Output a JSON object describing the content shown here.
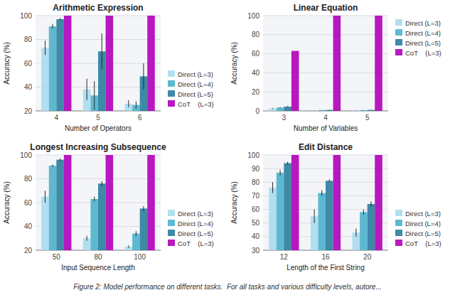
{
  "chart_data": [
    {
      "type": "bar",
      "title": "Arithmetic Expression",
      "x_label": "Number of Operators",
      "y_label": "Accuracy (%)",
      "categories": [
        "4",
        "5",
        "6"
      ],
      "series": [
        {
          "name": "Direct (L=3)",
          "color": "#aadcee",
          "values": [
            73,
            38,
            26
          ],
          "errors": [
            6,
            9,
            3
          ]
        },
        {
          "name": "Direct (L=4)",
          "color": "#4db3cc",
          "values": [
            91,
            33,
            25
          ],
          "errors": [
            2,
            12,
            3
          ]
        },
        {
          "name": "Direct (L=5)",
          "color": "#2a7d9c",
          "values": [
            97,
            70,
            49
          ],
          "errors": [
            1,
            15,
            11
          ]
        },
        {
          "name": "CoT    (L=3)",
          "color": "#b000b8",
          "values": [
            100,
            100,
            100
          ],
          "errors": [
            0,
            0,
            0
          ]
        }
      ],
      "ylim": [
        20,
        100
      ],
      "yticks": [
        20,
        40,
        60,
        80,
        100
      ],
      "grid": true,
      "legend": "lower left"
    },
    {
      "type": "bar",
      "title": "Linear Equation",
      "x_label": "Number of Variables",
      "y_label": "Accuracy (%)",
      "categories": [
        "3",
        "4",
        "5"
      ],
      "series": [
        {
          "name": "Direct (L=3)",
          "color": "#aadcee",
          "values": [
            2.5,
            0.5,
            0.5
          ],
          "errors": [
            0.5,
            0.2,
            0.2
          ]
        },
        {
          "name": "Direct (L=4)",
          "color": "#4db3cc",
          "values": [
            3.5,
            0.8,
            0.8
          ],
          "errors": [
            0.5,
            0.2,
            0.2
          ]
        },
        {
          "name": "Direct (L=5)",
          "color": "#2a7d9c",
          "values": [
            4.5,
            1.0,
            1.0
          ],
          "errors": [
            0.5,
            0.2,
            0.2
          ]
        },
        {
          "name": "CoT    (L=3)",
          "color": "#b000b8",
          "values": [
            63,
            100,
            100
          ],
          "errors": [
            0,
            0,
            0
          ]
        }
      ],
      "ylim": [
        0,
        100
      ],
      "yticks": [
        0,
        20,
        40,
        60,
        80,
        100
      ],
      "grid": true,
      "legend": "upper left"
    },
    {
      "type": "bar",
      "title": "Longest Increasing Subsequence",
      "x_label": "Input Sequence Length",
      "y_label": "Accuracy (%)",
      "categories": [
        "50",
        "80",
        "100"
      ],
      "series": [
        {
          "name": "Direct (L=3)",
          "color": "#aadcee",
          "values": [
            65,
            30,
            23
          ],
          "errors": [
            5,
            2,
            1
          ]
        },
        {
          "name": "Direct (L=4)",
          "color": "#4db3cc",
          "values": [
            91,
            63,
            34
          ],
          "errors": [
            1,
            2,
            2
          ]
        },
        {
          "name": "Direct (L=5)",
          "color": "#2a7d9c",
          "values": [
            96,
            76,
            55
          ],
          "errors": [
            1,
            2,
            2
          ]
        },
        {
          "name": "CoT    (L=3)",
          "color": "#b000b8",
          "values": [
            100,
            100,
            100
          ],
          "errors": [
            0,
            0,
            0
          ]
        }
      ],
      "ylim": [
        20,
        100
      ],
      "yticks": [
        20,
        40,
        60,
        80,
        100
      ],
      "grid": true,
      "legend": "lower left"
    },
    {
      "type": "bar",
      "title": "Edit Distance",
      "x_label": "Length of the First String",
      "y_label": "Accuracy (%)",
      "categories": [
        "12",
        "16",
        "20"
      ],
      "series": [
        {
          "name": "Direct (L=3)",
          "color": "#aadcee",
          "values": [
            76,
            55,
            43
          ],
          "errors": [
            4,
            5,
            3
          ]
        },
        {
          "name": "Direct (L=4)",
          "color": "#4db3cc",
          "values": [
            87,
            72,
            58
          ],
          "errors": [
            2,
            2,
            2
          ]
        },
        {
          "name": "Direct (L=5)",
          "color": "#2a7d9c",
          "values": [
            94,
            81,
            64
          ],
          "errors": [
            1,
            1,
            2
          ]
        },
        {
          "name": "CoT    (L=3)",
          "color": "#b000b8",
          "values": [
            100,
            100,
            100
          ],
          "errors": [
            0,
            0,
            0
          ]
        }
      ],
      "ylim": [
        30,
        100
      ],
      "yticks": [
        30,
        40,
        50,
        60,
        70,
        80,
        90,
        100
      ],
      "grid": true,
      "legend": "lower left"
    }
  ],
  "caption": "Figure 2: Model performance on different tasks.  For all tasks and various difficulty levels, autore..."
}
